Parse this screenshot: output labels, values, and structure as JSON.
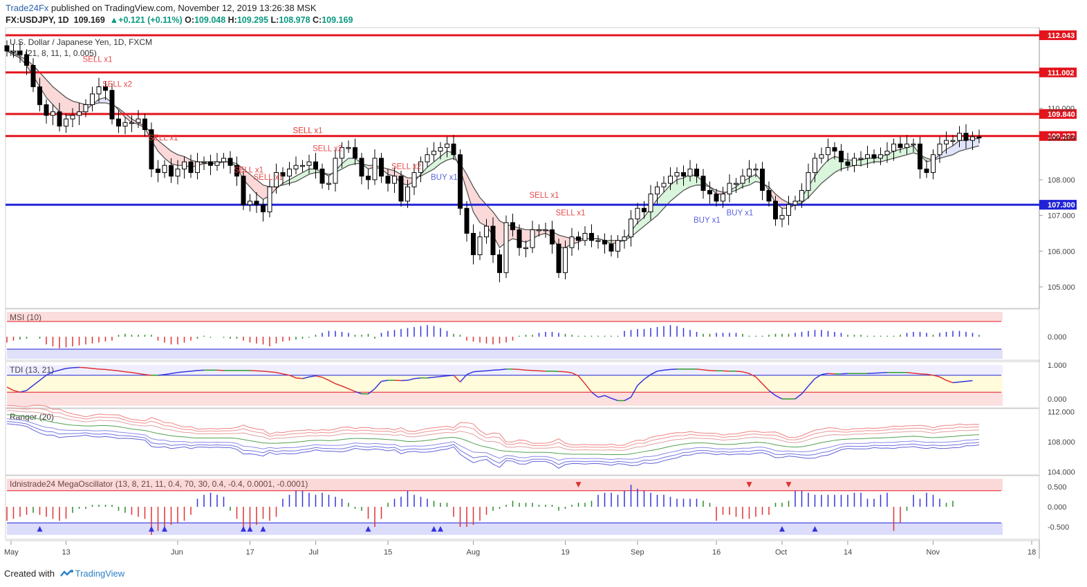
{
  "header": {
    "brand": "Trade24Fx",
    "published": " published on TradingView.com, November 12, 2019 13:26:38 MSK",
    "symbol": "FX:USDJPY, 1D",
    "last": "109.169",
    "change": "+0.121 (+0.11%)",
    "o_label": "O:",
    "o": "109.048",
    "h_label": "H:",
    "h": "109.295",
    "l_label": "L:",
    "l": "108.978",
    "c_label": "C:",
    "c": "109.169"
  },
  "footer": {
    "created": "Created with",
    "brand": "TradingView"
  },
  "colors": {
    "up": "#ffffff",
    "down": "#000000",
    "red_line": "#e3141c",
    "blue_line": "#1f22d6",
    "sell": "#e84a4a",
    "buy": "#5b63e0"
  },
  "chart_data": {
    "type": "candlestick",
    "title": "U.S. Dollar / Japanese Yen, 1D, FXCM",
    "indicator_label": "Ichi (21, 8, 11, 1, 0.005)",
    "ylim": [
      104.4,
      112.1
    ],
    "y_ticks": [
      "105.000",
      "106.000",
      "107.000",
      "108.000",
      "110.000"
    ],
    "x_ticks": [
      "May",
      "13",
      "Jun",
      "17",
      "Jul",
      "15",
      "Aug",
      "19",
      "Sep",
      "16",
      "Oct",
      "14",
      "Nov",
      "18"
    ],
    "price_levels": [
      {
        "label": "112.043",
        "value": 112.043,
        "color": "red"
      },
      {
        "label": "111.002",
        "value": 111.002,
        "color": "red"
      },
      {
        "label": "109.840",
        "value": 109.84,
        "color": "red"
      },
      {
        "label": "109.223",
        "value": 109.223,
        "color": "red"
      },
      {
        "label": "107.300",
        "value": 107.3,
        "color": "blue"
      }
    ],
    "last_price": {
      "label": "109.169",
      "value": 109.169
    },
    "close": [
      111.6,
      111.6,
      111.5,
      111.2,
      110.6,
      110.1,
      109.8,
      109.9,
      109.5,
      109.7,
      109.8,
      109.9,
      110.1,
      110.4,
      110.6,
      110.5,
      109.7,
      109.5,
      109.6,
      109.6,
      109.7,
      109.4,
      108.3,
      108.2,
      108.4,
      108.1,
      108.3,
      108.5,
      108.2,
      108.5,
      108.5,
      108.4,
      108.5,
      108.6,
      108.4,
      108.1,
      107.3,
      107.4,
      107.3,
      107.1,
      107.8,
      108.2,
      108.1,
      108.3,
      108.4,
      108.4,
      108.5,
      108.3,
      107.9,
      107.9,
      108.6,
      108.9,
      108.9,
      108.6,
      108.1,
      108.0,
      108.6,
      108.1,
      107.9,
      108.1,
      107.4,
      107.8,
      108.2,
      108.5,
      108.7,
      108.8,
      108.9,
      109.0,
      108.7,
      107.2,
      106.5,
      105.9,
      106.4,
      106.7,
      105.9,
      105.4,
      106.8,
      106.6,
      106.1,
      106.1,
      106.6,
      106.6,
      106.6,
      106.2,
      105.4,
      106.1,
      106.4,
      106.3,
      106.5,
      106.3,
      106.3,
      106.2,
      106.0,
      106.3,
      106.4,
      106.9,
      107.2,
      107.1,
      107.6,
      107.8,
      107.9,
      108.1,
      108.2,
      108.1,
      108.3,
      108.1,
      107.7,
      107.6,
      107.4,
      107.6,
      107.9,
      107.9,
      108.1,
      108.3,
      108.3,
      107.7,
      107.4,
      106.9,
      107.0,
      107.3,
      107.4,
      107.7,
      108.2,
      108.6,
      108.7,
      108.9,
      108.8,
      108.5,
      108.4,
      108.6,
      108.6,
      108.7,
      108.6,
      108.7,
      108.8,
      109.0,
      108.9,
      109.0,
      109.0,
      108.3,
      108.2,
      108.7,
      109.0,
      109.1,
      109.1,
      109.3,
      109.1,
      109.2,
      109.17
    ],
    "ichimoku_fast": [
      111.6,
      111.5,
      111.4,
      111.2,
      110.9,
      110.6,
      110.3,
      110.1,
      109.9,
      109.8,
      109.8,
      109.85,
      109.95,
      110.1,
      110.25,
      110.3,
      110.15,
      109.95,
      109.75,
      109.6,
      109.55,
      109.45,
      109.1,
      108.8,
      108.6,
      108.45,
      108.4,
      108.4,
      108.35,
      108.4,
      108.45,
      108.45,
      108.45,
      108.5,
      108.5,
      108.35,
      108.0,
      107.8,
      107.6,
      107.45,
      107.55,
      107.75,
      107.9,
      108.0,
      108.1,
      108.2,
      108.3,
      108.3,
      108.2,
      108.1,
      108.25,
      108.45,
      108.6,
      108.6,
      108.45,
      108.3,
      108.35,
      108.3,
      108.15,
      108.1,
      107.9,
      107.85,
      107.95,
      108.15,
      108.35,
      108.5,
      108.65,
      108.8,
      108.75,
      108.3,
      107.7,
      107.1,
      106.8,
      106.7,
      106.45,
      106.1,
      106.25,
      106.35,
      106.3,
      106.25,
      106.35,
      106.45,
      106.5,
      106.4,
      106.1,
      106.1,
      106.2,
      106.25,
      106.35,
      106.35,
      106.35,
      106.3,
      106.2,
      106.25,
      106.3,
      106.55,
      106.8,
      106.95,
      107.2,
      107.45,
      107.65,
      107.85,
      108.0,
      108.05,
      108.15,
      108.1,
      107.95,
      107.8,
      107.6,
      107.6,
      107.7,
      107.8,
      107.95,
      108.05,
      108.15,
      107.95,
      107.7,
      107.35,
      107.2,
      107.2,
      107.3,
      107.5,
      107.8,
      108.1,
      108.35,
      108.55,
      108.65,
      108.6,
      108.55,
      108.55,
      108.55,
      108.6,
      108.6,
      108.65,
      108.7,
      108.8,
      108.85,
      108.9,
      108.95,
      108.7,
      108.5,
      108.55,
      108.7,
      108.85,
      108.95,
      109.1,
      109.1,
      109.15,
      109.15
    ],
    "ichimoku_slow": [
      111.6,
      111.55,
      111.45,
      111.35,
      111.2,
      111.0,
      110.8,
      110.6,
      110.45,
      110.3,
      110.2,
      110.15,
      110.1,
      110.1,
      110.15,
      110.15,
      110.1,
      110.0,
      109.85,
      109.7,
      109.6,
      109.5,
      109.3,
      109.1,
      108.95,
      108.8,
      108.7,
      108.65,
      108.55,
      108.5,
      108.5,
      108.5,
      108.5,
      108.5,
      108.5,
      108.45,
      108.3,
      108.15,
      108.0,
      107.85,
      107.8,
      107.8,
      107.85,
      107.9,
      107.95,
      108.05,
      108.15,
      108.2,
      108.2,
      108.15,
      108.2,
      108.3,
      108.4,
      108.45,
      108.45,
      108.4,
      108.4,
      108.35,
      108.3,
      108.25,
      108.15,
      108.05,
      108.05,
      108.1,
      108.2,
      108.3,
      108.45,
      108.55,
      108.6,
      108.45,
      108.15,
      107.8,
      107.5,
      107.3,
      107.1,
      106.85,
      106.75,
      106.7,
      106.65,
      106.6,
      106.6,
      106.6,
      106.6,
      106.55,
      106.45,
      106.4,
      106.35,
      106.35,
      106.35,
      106.35,
      106.35,
      106.3,
      106.3,
      106.3,
      106.3,
      106.4,
      106.55,
      106.7,
      106.85,
      107.0,
      107.2,
      107.4,
      107.55,
      107.7,
      107.8,
      107.85,
      107.85,
      107.8,
      107.7,
      107.65,
      107.65,
      107.7,
      107.8,
      107.85,
      107.95,
      107.9,
      107.8,
      107.6,
      107.45,
      107.35,
      107.3,
      107.35,
      107.5,
      107.7,
      107.9,
      108.05,
      108.2,
      108.3,
      108.35,
      108.4,
      108.4,
      108.45,
      108.5,
      108.5,
      108.55,
      108.6,
      108.65,
      108.7,
      108.75,
      108.7,
      108.6,
      108.55,
      108.6,
      108.65,
      108.7,
      108.8,
      108.85,
      108.9,
      108.95
    ],
    "signals": [
      {
        "label": "SELL x2",
        "i": 16,
        "side": "sell"
      },
      {
        "label": "SELL x1",
        "i": 13,
        "side": "sell"
      },
      {
        "label": "SELL x1",
        "i": 23,
        "side": "sell"
      },
      {
        "label": "SELL x1",
        "i": 36,
        "side": "sell"
      },
      {
        "label": "SELL x1",
        "i": 39,
        "side": "sell"
      },
      {
        "label": "SELL x2",
        "i": 48,
        "side": "sell"
      },
      {
        "label": "SELL x1",
        "i": 45,
        "side": "sell"
      },
      {
        "label": "SELL x",
        "i": 45,
        "side": "sell"
      },
      {
        "label": "SELL x2",
        "i": 60,
        "side": "sell"
      },
      {
        "label": "BUY x1",
        "i": 66,
        "side": "buy"
      },
      {
        "label": "SELL x1",
        "i": 81,
        "side": "sell"
      },
      {
        "label": "SELL x1",
        "i": 85,
        "side": "sell"
      },
      {
        "label": "BUY x1",
        "i": 106,
        "side": "buy"
      },
      {
        "label": "BUY x1",
        "i": 111,
        "side": "buy"
      }
    ],
    "panels": [
      {
        "name": "MSI (10)",
        "y_ticks": [
          "0.000"
        ]
      },
      {
        "name": "TDI (13, 21)",
        "y_ticks": [
          "1.000",
          "0.000"
        ]
      },
      {
        "name": "Ranger (20)",
        "y_ticks": [
          "112.000",
          "108.000",
          "104.000"
        ]
      },
      {
        "name": "Idnistrade24 MegaOscillator (13, 8, 21, 11, 0.4, 70, 30, 0.4, -0.4, 0.0001, -0.0001)",
        "y_ticks": [
          "0.500",
          "0.000",
          "-0.500"
        ]
      }
    ],
    "tdi": [
      0.35,
      0.25,
      0.2,
      0.25,
      0.4,
      0.55,
      0.7,
      0.8,
      0.85,
      0.9,
      0.92,
      0.93,
      0.92,
      0.9,
      0.88,
      0.87,
      0.85,
      0.83,
      0.8,
      0.78,
      0.75,
      0.72,
      0.7,
      0.7,
      0.72,
      0.75,
      0.78,
      0.8,
      0.82,
      0.84,
      0.85,
      0.85,
      0.85,
      0.84,
      0.84,
      0.84,
      0.84,
      0.84,
      0.83,
      0.82,
      0.8,
      0.78,
      0.74,
      0.7,
      0.62,
      0.6,
      0.65,
      0.68,
      0.64,
      0.55,
      0.45,
      0.38,
      0.3,
      0.22,
      0.15,
      0.15,
      0.3,
      0.52,
      0.55,
      0.55,
      0.54,
      0.55,
      0.6,
      0.62,
      0.62,
      0.64,
      0.66,
      0.68,
      0.7,
      0.5,
      0.72,
      0.8,
      0.82,
      0.83,
      0.85,
      0.86,
      0.88,
      0.88,
      0.87,
      0.85,
      0.84,
      0.83,
      0.82,
      0.82,
      0.81,
      0.8,
      0.77,
      0.68,
      0.45,
      0.2,
      0.05,
      0.1,
      0.02,
      -0.05,
      -0.05,
      0.05,
      0.4,
      0.58,
      0.72,
      0.82,
      0.85,
      0.87,
      0.88,
      0.88,
      0.88,
      0.88,
      0.86,
      0.84,
      0.83,
      0.83,
      0.82,
      0.82,
      0.8,
      0.75,
      0.65,
      0.45,
      0.25,
      0.1,
      0.0,
      0.0,
      0.0,
      0.15,
      0.38,
      0.6,
      0.72,
      0.75,
      0.74,
      0.74,
      0.75,
      0.75,
      0.75,
      0.75,
      0.76,
      0.77,
      0.78,
      0.78,
      0.78,
      0.78,
      0.76,
      0.74,
      0.73,
      0.7,
      0.65,
      0.55,
      0.48,
      0.5,
      0.52,
      0.54
    ],
    "msi": [
      -0.3,
      -0.2,
      -0.15,
      -0.1,
      0.0,
      -0.1,
      -0.4,
      -0.5,
      -0.6,
      -0.55,
      -0.5,
      -0.45,
      -0.4,
      -0.35,
      -0.3,
      -0.25,
      -0.2,
      0.1,
      0.15,
      0.1,
      0.1,
      0.1,
      0.1,
      -0.2,
      -0.3,
      -0.4,
      -0.4,
      -0.3,
      -0.2,
      -0.1,
      0.05,
      -0.05,
      0.0,
      -0.05,
      -0.1,
      -0.1,
      -0.2,
      -0.3,
      -0.35,
      -0.4,
      -0.5,
      -0.35,
      -0.25,
      -0.2,
      -0.15,
      -0.1,
      -0.05,
      0.1,
      0.2,
      0.3,
      0.3,
      0.25,
      0.2,
      0.1,
      0.1,
      0.15,
      -0.1,
      0.2,
      0.3,
      0.35,
      0.4,
      0.45,
      0.5,
      0.55,
      0.6,
      0.55,
      0.45,
      0.3,
      0.15,
      0.1,
      -0.2,
      -0.25,
      -0.3,
      -0.35,
      -0.4,
      -0.35,
      -0.3,
      -0.2,
      0.05,
      0.1,
      0.1,
      0.2,
      0.25,
      0.25,
      0.2,
      0.15,
      0.1,
      0.05,
      0.05,
      0.05,
      0.05,
      0.05,
      0.05,
      0.05,
      0.3,
      0.35,
      0.4,
      0.4,
      0.45,
      0.5,
      0.55,
      0.6,
      0.55,
      0.45,
      0.35,
      0.25,
      0.15,
      0.15,
      0.2,
      0.2,
      0.2,
      0.2,
      0.15,
      0.05,
      0.05,
      0.05,
      0.1,
      0.15,
      0.15,
      0.15,
      0.2,
      0.25,
      0.3,
      0.35,
      0.35,
      0.3,
      0.25,
      0.2,
      0.1,
      0.1,
      0.1,
      0.05,
      0.05,
      0.05,
      0.05,
      0.05,
      0.1,
      0.2,
      0.25,
      0.25,
      0.2,
      0.1,
      0.2,
      0.25,
      0.3,
      0.3,
      0.25,
      0.2,
      0.1
    ],
    "mega": [
      -0.35,
      -0.3,
      -0.25,
      -0.2,
      -0.15,
      -0.2,
      -0.25,
      -0.3,
      -0.35,
      -0.3,
      -0.15,
      -0.05,
      -0.05,
      0.05,
      0.05,
      0.05,
      0.05,
      -0.1,
      -0.15,
      -0.2,
      -0.25,
      -0.3,
      -0.7,
      -0.6,
      -0.5,
      -0.45,
      -0.4,
      -0.35,
      -0.2,
      0.2,
      0.3,
      0.35,
      0.3,
      0.25,
      -0.1,
      -0.3,
      -0.55,
      -0.5,
      -0.45,
      -0.3,
      -0.35,
      -0.25,
      0.2,
      0.3,
      0.4,
      0.4,
      0.35,
      0.3,
      0.35,
      0.3,
      0.25,
      0.2,
      0.1,
      -0.05,
      -0.1,
      -0.3,
      -0.5,
      -0.3,
      0.1,
      0.2,
      0.25,
      0.4,
      0.3,
      0.25,
      0.2,
      0.15,
      0.1,
      0.1,
      -0.25,
      -0.5,
      -0.5,
      -0.45,
      -0.35,
      -0.2,
      -0.1,
      -0.05,
      0.05,
      0.15,
      0.1,
      0.1,
      0.1,
      0.05,
      0.05,
      0.05,
      -0.1,
      -0.05,
      0.05,
      0.1,
      0.1,
      0.15,
      0.3,
      0.35,
      0.35,
      0.3,
      0.4,
      0.55,
      0.45,
      0.4,
      0.35,
      0.3,
      0.3,
      0.25,
      0.2,
      0.2,
      0.2,
      0.2,
      0.15,
      0.1,
      -0.35,
      -0.2,
      -0.2,
      -0.25,
      -0.3,
      -0.3,
      -0.25,
      -0.2,
      -0.2,
      0.1,
      0.1,
      0.15,
      0.4,
      0.4,
      0.35,
      0.3,
      0.3,
      0.3,
      0.3,
      0.3,
      0.3,
      0.35,
      0.35,
      0.2,
      0.2,
      0.3,
      0.35,
      -0.6,
      -0.4,
      -0.1,
      0.3,
      0.2,
      0.35,
      0.3,
      0.2,
      0.1,
      0.15
    ],
    "mega_markers_up": [
      5,
      22,
      24,
      36,
      37,
      39,
      55,
      65,
      66,
      118,
      123
    ],
    "mega_markers_down": [
      87,
      113,
      119
    ]
  }
}
